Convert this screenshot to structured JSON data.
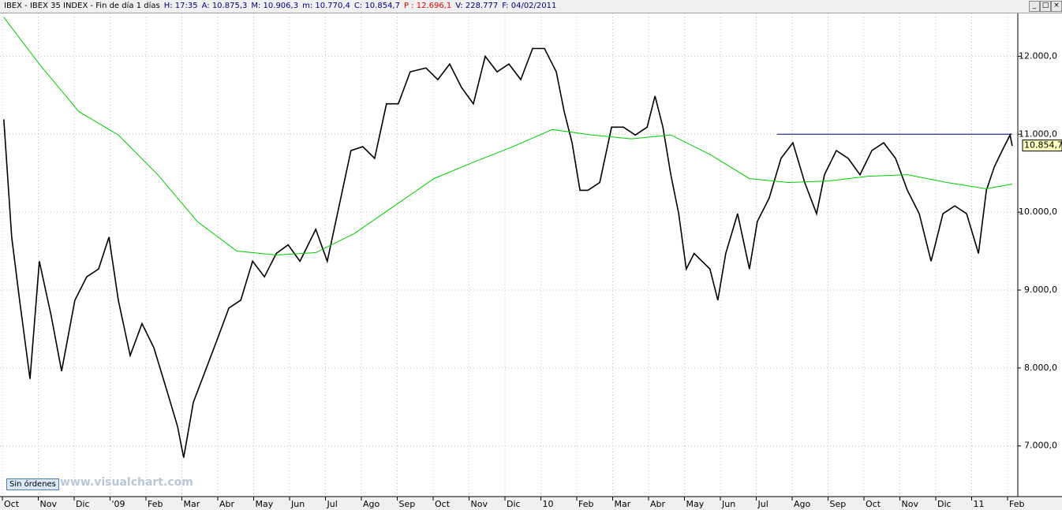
{
  "header": {
    "fields": [
      "IBEX - IBEX 35 INDEX - Fin de día 1 días",
      "H: 17:35",
      "A: 10.875,3",
      "M: 10.906,3",
      "m: 10.770,4",
      "C: 10.854,7",
      "P : 12.696,1",
      "V: 228.777",
      "F: 04/02/2011"
    ]
  },
  "button": "Sin órdenes",
  "watermark": "www.visualchart.com",
  "chart_data": {
    "type": "line",
    "xlim": [
      0,
      28.3
    ],
    "ylim": [
      6350,
      12550
    ],
    "xticks": [
      {
        "value": 0,
        "label": "Oct"
      },
      {
        "value": 1,
        "label": "Nov"
      },
      {
        "value": 2,
        "label": "Dic"
      },
      {
        "value": 3,
        "label": "'09"
      },
      {
        "value": 4,
        "label": "Feb"
      },
      {
        "value": 5,
        "label": "Mar"
      },
      {
        "value": 6,
        "label": "Abr"
      },
      {
        "value": 7,
        "label": "May"
      },
      {
        "value": 8,
        "label": "Jun"
      },
      {
        "value": 9,
        "label": "Jul"
      },
      {
        "value": 10,
        "label": "Ago"
      },
      {
        "value": 11,
        "label": "Sep"
      },
      {
        "value": 12,
        "label": "Oct"
      },
      {
        "value": 13,
        "label": "Nov"
      },
      {
        "value": 14,
        "label": "Dic"
      },
      {
        "value": 15,
        "label": "10"
      },
      {
        "value": 16,
        "label": "Feb"
      },
      {
        "value": 17,
        "label": "Mar"
      },
      {
        "value": 18,
        "label": "Abr"
      },
      {
        "value": 19,
        "label": "May"
      },
      {
        "value": 20,
        "label": "Jun"
      },
      {
        "value": 21,
        "label": "Jul"
      },
      {
        "value": 22,
        "label": "Ago"
      },
      {
        "value": 23,
        "label": "Sep"
      },
      {
        "value": 24,
        "label": "Oct"
      },
      {
        "value": 25,
        "label": "Nov"
      },
      {
        "value": 26,
        "label": "Dic"
      },
      {
        "value": 27,
        "label": "11"
      },
      {
        "value": 28,
        "label": "Feb"
      }
    ],
    "yticks": [
      {
        "value": 7000,
        "label": "7.000,0"
      },
      {
        "value": 8000,
        "label": "8.000,0"
      },
      {
        "value": 9000,
        "label": "9.000,0"
      },
      {
        "value": 10000,
        "label": "10.000,0"
      },
      {
        "value": 11000,
        "label": "11.000,0"
      },
      {
        "value": 12000,
        "label": "12.000,0"
      }
    ],
    "grid": true,
    "last_value": {
      "value": 10854.7,
      "label": "10.854,7"
    },
    "hline": {
      "value": 11000,
      "x": [
        21.58,
        28.13
      ],
      "color": "#000080"
    },
    "series": [
      {
        "color": "#000000",
        "x": [
          0.04,
          0.26,
          0.48,
          0.77,
          1.03,
          1.36,
          1.65,
          2.02,
          2.35,
          2.68,
          2.97,
          3.23,
          3.56,
          3.89,
          4.22,
          4.55,
          4.88,
          5.05,
          5.32,
          5.65,
          5.98,
          6.31,
          6.64,
          6.97,
          7.3,
          7.63,
          7.96,
          8.29,
          8.73,
          9.05,
          9.38,
          9.71,
          10.04,
          10.37,
          10.7,
          11.03,
          11.36,
          11.8,
          12.13,
          12.46,
          12.79,
          13.12,
          13.45,
          13.78,
          14.11,
          14.44,
          14.77,
          15.1,
          15.43,
          15.65,
          15.87,
          16.09,
          16.31,
          16.64,
          16.97,
          17.3,
          17.63,
          17.96,
          18.18,
          18.4,
          18.62,
          18.84,
          19.05,
          19.27,
          19.49,
          19.71,
          19.93,
          20.15,
          20.48,
          20.81,
          21.03,
          21.36,
          21.69,
          22.02,
          22.35,
          22.68,
          22.9,
          23.23,
          23.56,
          23.89,
          24.22,
          24.55,
          24.88,
          25.21,
          25.54,
          25.87,
          26.2,
          26.53,
          26.86,
          27.19,
          27.41,
          27.63,
          27.85,
          28.07,
          28.13
        ],
        "values": [
          11190,
          9680,
          8870,
          7860,
          9370,
          8670,
          7960,
          8870,
          9170,
          9270,
          9680,
          8870,
          8160,
          8570,
          8260,
          7760,
          7250,
          6850,
          7560,
          7960,
          8360,
          8770,
          8870,
          9370,
          9170,
          9470,
          9580,
          9370,
          9780,
          9370,
          10080,
          10790,
          10840,
          10690,
          11390,
          11390,
          11800,
          11850,
          11700,
          11900,
          11600,
          11390,
          12000,
          11800,
          11900,
          11700,
          12100,
          12100,
          11800,
          11290,
          10890,
          10280,
          10280,
          10380,
          11090,
          11090,
          10990,
          11090,
          11490,
          11090,
          10480,
          9980,
          9270,
          9470,
          9370,
          9270,
          8870,
          9470,
          9980,
          9270,
          9880,
          10180,
          10690,
          10890,
          10380,
          9980,
          10480,
          10790,
          10690,
          10480,
          10790,
          10890,
          10690,
          10280,
          9980,
          9370,
          9980,
          10080,
          9980,
          9470,
          10280,
          10580,
          10790,
          10990,
          10850
        ]
      },
      {
        "color": "#00cc00",
        "x": [
          0.04,
          1.03,
          2.13,
          3.23,
          4.33,
          5.43,
          6.53,
          7.63,
          8.73,
          9.82,
          10.92,
          12.02,
          13.12,
          14.22,
          15.32,
          16.42,
          17.52,
          18.62,
          19.71,
          20.81,
          21.91,
          23.01,
          24.11,
          25.21,
          26.31,
          27.41,
          28.13
        ],
        "values": [
          12500,
          11900,
          11290,
          10990,
          10480,
          9880,
          9500,
          9450,
          9480,
          9730,
          10080,
          10430,
          10640,
          10840,
          11060,
          10990,
          10940,
          10990,
          10740,
          10430,
          10380,
          10400,
          10460,
          10480,
          10380,
          10300,
          10360
        ]
      }
    ]
  }
}
